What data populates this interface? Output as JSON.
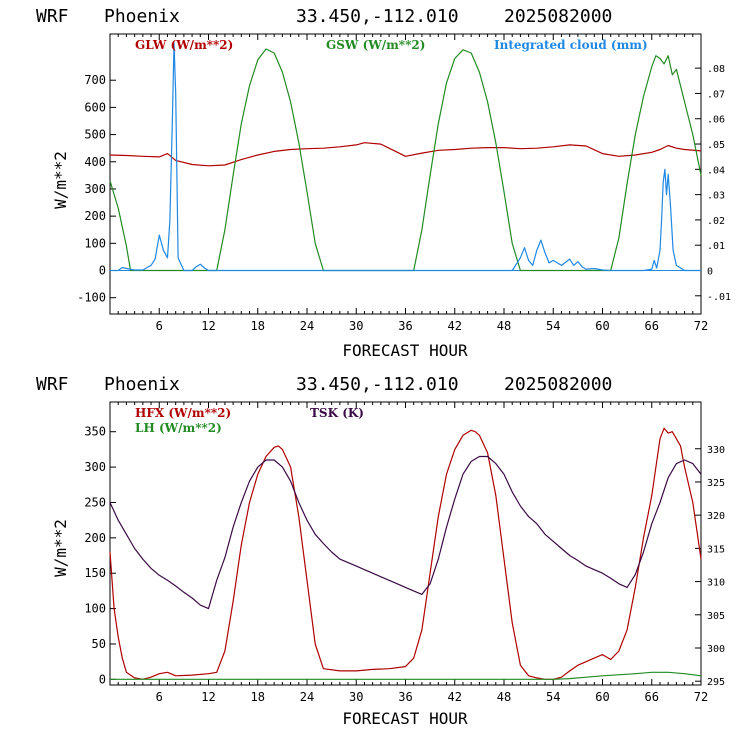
{
  "panels": [
    {
      "header": {
        "model": "WRF",
        "station": "Phoenix",
        "coords": "33.450,-112.010",
        "init": "2025082000"
      },
      "legend": [
        {
          "label": "GLW (W/m**2)",
          "color": "#b00000"
        },
        {
          "label": "GSW (W/m**2)",
          "color": "#228b22"
        },
        {
          "label": "Integrated cloud (mm)",
          "color": "#1e88e5"
        }
      ]
    },
    {
      "header": {
        "model": "WRF",
        "station": "Phoenix",
        "coords": "33.450,-112.010",
        "init": "2025082000"
      },
      "legend": [
        {
          "label": "HFX (W/m**2)",
          "color": "#b00000"
        },
        {
          "label": "LH  (W/m**2)",
          "color": "#228b22"
        },
        {
          "label": "TSK (K)",
          "color": "#3b0a45"
        }
      ]
    }
  ],
  "chart_data": [
    {
      "type": "line",
      "xlabel": "FORECAST HOUR",
      "ylabel": "W/m**2",
      "xlim": [
        0,
        72
      ],
      "ylim": [
        -160,
        870
      ],
      "xticks": [
        6,
        12,
        18,
        24,
        30,
        36,
        42,
        48,
        54,
        60,
        66,
        72
      ],
      "yticks": [
        -100,
        0,
        100,
        200,
        300,
        400,
        500,
        600,
        700
      ],
      "y2lim": [
        -0.0172,
        0.0935
      ],
      "y2ticks": [
        -0.01,
        0,
        0.01,
        0.02,
        0.03,
        0.04,
        0.05,
        0.06,
        0.07,
        0.08
      ],
      "y2ticklabels": [
        "-.01",
        "0",
        ".01",
        ".02",
        ".03",
        ".04",
        ".05",
        ".06",
        ".07",
        ".08"
      ],
      "series": [
        {
          "name": "GLW (W/m**2)",
          "color": "#b00000",
          "axis": "left",
          "x": [
            0,
            2,
            4,
            6,
            7,
            8,
            10,
            12,
            14,
            16,
            18,
            20,
            22,
            24,
            26,
            28,
            30,
            31,
            33,
            34,
            36,
            38,
            40,
            42,
            44,
            46,
            48,
            50,
            52,
            54,
            56,
            58,
            60,
            62,
            64,
            66,
            67,
            68,
            69,
            70,
            72
          ],
          "y": [
            425,
            423,
            420,
            418,
            430,
            405,
            390,
            385,
            388,
            408,
            425,
            438,
            445,
            448,
            450,
            455,
            462,
            470,
            465,
            450,
            420,
            432,
            442,
            445,
            450,
            452,
            452,
            448,
            450,
            455,
            462,
            458,
            430,
            420,
            425,
            435,
            445,
            460,
            450,
            445,
            440
          ]
        },
        {
          "name": "GSW (W/m**2)",
          "color": "#228b22",
          "axis": "left",
          "x": [
            0,
            1,
            2,
            2.5,
            13,
            14,
            15,
            16,
            17,
            18,
            19,
            20,
            21,
            22,
            23,
            24,
            25,
            26,
            37,
            38,
            39,
            40,
            41,
            42,
            43,
            44,
            45,
            46,
            47,
            48,
            49,
            50,
            61,
            62,
            63,
            64,
            65,
            66,
            66.5,
            67,
            67.5,
            68,
            68.5,
            69,
            70,
            71,
            72
          ],
          "y": [
            330,
            230,
            90,
            0,
            0,
            150,
            350,
            540,
            680,
            775,
            815,
            800,
            730,
            620,
            470,
            290,
            100,
            0,
            0,
            150,
            350,
            540,
            690,
            780,
            812,
            800,
            730,
            620,
            470,
            290,
            100,
            0,
            0,
            120,
            320,
            500,
            640,
            750,
            790,
            780,
            760,
            790,
            720,
            740,
            620,
            500,
            350
          ]
        },
        {
          "name": "Integrated cloud (mm)",
          "color": "#1e88e5",
          "axis": "right",
          "x": [
            0,
            1,
            1.5,
            2,
            3,
            4,
            5,
            5.5,
            6,
            6.5,
            7,
            7.3,
            7.6,
            7.8,
            8,
            8.3,
            9,
            10,
            10.5,
            11,
            11.5,
            12,
            14,
            20,
            30,
            40,
            49,
            50,
            50.5,
            51,
            51.5,
            52,
            52.5,
            53,
            53.5,
            54,
            55,
            56,
            56.5,
            57,
            57.5,
            58,
            59,
            60,
            61,
            64,
            65,
            66,
            66.3,
            66.6,
            67,
            67.2,
            67.4,
            67.6,
            67.8,
            68,
            68.3,
            68.6,
            69,
            70,
            72
          ],
          "y": [
            0,
            0,
            0.0012,
            0.0008,
            0.0002,
            0.0002,
            0.002,
            0.0045,
            0.014,
            0.008,
            0.005,
            0.02,
            0.06,
            0.09,
            0.07,
            0.005,
            0,
            0,
            0.0015,
            0.0025,
            0.001,
            0,
            0,
            0,
            0,
            0,
            0,
            0.005,
            0.009,
            0.004,
            0.002,
            0.008,
            0.012,
            0.007,
            0.003,
            0.004,
            0.002,
            0.0045,
            0.002,
            0.0035,
            0.0015,
            0.0005,
            0.0008,
            0.0002,
            0,
            0,
            0,
            0.0005,
            0.004,
            0.001,
            0.008,
            0.02,
            0.035,
            0.04,
            0.03,
            0.038,
            0.025,
            0.008,
            0.002,
            0,
            0
          ]
        }
      ]
    },
    {
      "type": "line",
      "xlabel": "FORECAST HOUR",
      "ylabel": "W/m**2",
      "xlim": [
        0,
        72
      ],
      "ylim": [
        -8,
        392
      ],
      "xticks": [
        6,
        12,
        18,
        24,
        30,
        36,
        42,
        48,
        54,
        60,
        66,
        72
      ],
      "yticks": [
        0,
        50,
        100,
        150,
        200,
        250,
        300,
        350
      ],
      "y2lim": [
        294.43,
        337.04
      ],
      "y2ticks": [
        295,
        300,
        305,
        310,
        315,
        320,
        325,
        330
      ],
      "y2ticklabels": [
        "295",
        "300",
        "305",
        "310",
        "315",
        "320",
        "325",
        "330"
      ],
      "series": [
        {
          "name": "HFX (W/m**2)",
          "color": "#b00000",
          "axis": "left",
          "x": [
            0,
            0.5,
            1,
            1.5,
            2,
            3,
            4,
            5,
            6,
            7,
            8,
            10,
            12,
            13,
            14,
            15,
            16,
            17,
            18,
            19,
            20,
            20.5,
            21,
            22,
            23,
            24,
            25,
            26,
            28,
            30,
            32,
            34,
            36,
            37,
            38,
            39,
            40,
            41,
            42,
            43,
            44,
            44.5,
            45,
            46,
            47,
            48,
            49,
            50,
            51,
            52,
            53,
            54,
            55,
            56,
            57,
            58,
            59,
            60,
            61,
            62,
            63,
            64,
            65,
            66,
            66.5,
            67,
            67.5,
            68,
            68.5,
            69,
            69.5,
            70,
            71,
            72
          ],
          "y": [
            180,
            100,
            60,
            30,
            10,
            2,
            0,
            3,
            8,
            10,
            5,
            6,
            8,
            10,
            40,
            110,
            190,
            250,
            290,
            315,
            328,
            330,
            325,
            300,
            230,
            140,
            50,
            15,
            12,
            12,
            14,
            15,
            18,
            30,
            70,
            150,
            230,
            290,
            325,
            345,
            352,
            350,
            345,
            320,
            260,
            170,
            80,
            20,
            5,
            2,
            0,
            0,
            3,
            12,
            20,
            25,
            30,
            35,
            28,
            40,
            70,
            130,
            200,
            260,
            300,
            340,
            355,
            348,
            350,
            340,
            330,
            300,
            250,
            170
          ]
        },
        {
          "name": "LH  (W/m**2)",
          "color": "#228b22",
          "axis": "left",
          "x": [
            0,
            4,
            6,
            10,
            14,
            20,
            26,
            30,
            36,
            40,
            46,
            52,
            54,
            56,
            58,
            60,
            64,
            66,
            68,
            70,
            72
          ],
          "y": [
            0,
            0,
            0,
            0,
            0,
            0,
            0,
            0,
            0,
            0,
            0,
            0,
            0,
            1,
            3,
            5,
            8,
            10,
            10,
            8,
            5
          ]
        },
        {
          "name": "TSK (K)",
          "color": "#3b0a45",
          "axis": "left",
          "x": [
            0,
            1,
            2,
            3,
            4,
            5,
            6,
            7,
            8,
            9,
            10,
            11,
            12,
            13,
            14,
            15,
            16,
            17,
            18,
            19,
            20,
            21,
            22,
            23,
            24,
            25,
            26,
            27,
            28,
            29,
            30,
            31,
            32,
            33,
            34,
            35,
            36,
            37,
            38,
            39,
            40,
            41,
            42,
            43,
            44,
            45,
            46,
            47,
            48,
            49,
            50,
            51,
            52,
            53,
            54,
            55,
            56,
            57,
            58,
            59,
            60,
            61,
            62,
            63,
            64,
            65,
            66,
            67,
            68,
            69,
            70,
            71,
            72
          ],
          "y": [
            250,
            225,
            205,
            185,
            170,
            157,
            147,
            140,
            132,
            123,
            115,
            105,
            100,
            140,
            172,
            215,
            250,
            280,
            300,
            310,
            310,
            300,
            280,
            250,
            225,
            205,
            192,
            180,
            170,
            165,
            160,
            155,
            150,
            145,
            140,
            135,
            130,
            125,
            120,
            135,
            170,
            215,
            255,
            290,
            308,
            315,
            315,
            305,
            290,
            265,
            245,
            230,
            220,
            205,
            195,
            185,
            175,
            168,
            160,
            155,
            150,
            143,
            135,
            130,
            148,
            180,
            220,
            250,
            285,
            305,
            310,
            305,
            290
          ]
        }
      ]
    }
  ]
}
